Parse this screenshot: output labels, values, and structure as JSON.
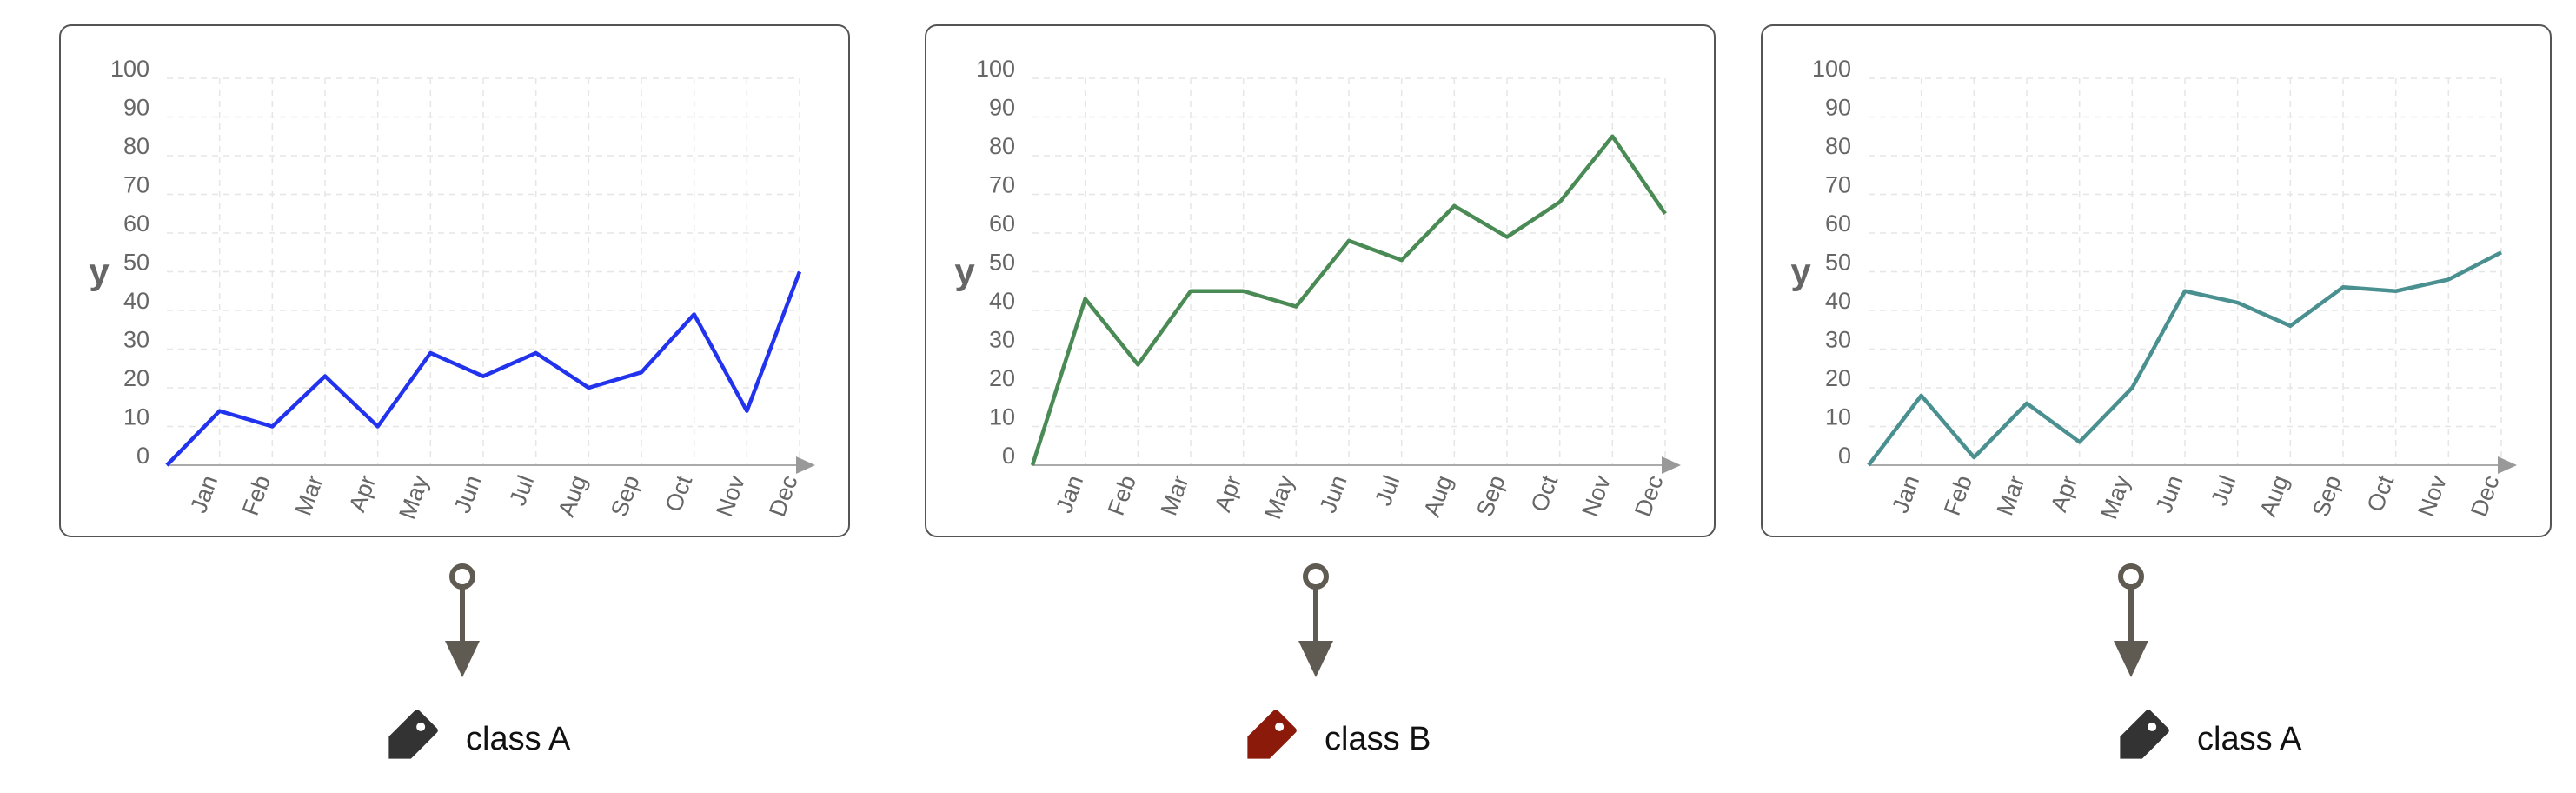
{
  "chart_data": [
    {
      "type": "line",
      "categories": [
        "Jan",
        "Feb",
        "Mar",
        "Apr",
        "May",
        "Jun",
        "Jul",
        "Aug",
        "Sep",
        "Oct",
        "Nov",
        "Dec"
      ],
      "x_start": 0,
      "values": [
        14,
        10,
        23,
        10,
        29,
        23,
        29,
        20,
        24,
        39,
        14,
        50
      ],
      "ylabel": "y",
      "ylim": [
        0,
        100
      ],
      "yticks": [
        0,
        10,
        20,
        30,
        40,
        50,
        60,
        70,
        80,
        90,
        100
      ],
      "color": "#2233ee",
      "grid": true
    },
    {
      "type": "line",
      "categories": [
        "Jan",
        "Feb",
        "Mar",
        "Apr",
        "May",
        "Jun",
        "Jul",
        "Aug",
        "Sep",
        "Oct",
        "Nov",
        "Dec"
      ],
      "x_start": 0,
      "values": [
        43,
        26,
        45,
        45,
        41,
        58,
        53,
        67,
        59,
        68,
        85,
        65
      ],
      "ylabel": "y",
      "ylim": [
        0,
        100
      ],
      "yticks": [
        0,
        10,
        20,
        30,
        40,
        50,
        60,
        70,
        80,
        90,
        100
      ],
      "color": "#4a8a55",
      "grid": true
    },
    {
      "type": "line",
      "categories": [
        "Jan",
        "Feb",
        "Mar",
        "Apr",
        "May",
        "Jun",
        "Jul",
        "Aug",
        "Sep",
        "Oct",
        "Nov",
        "Dec"
      ],
      "x_start": 0,
      "values": [
        18,
        2,
        16,
        6,
        20,
        45,
        42,
        36,
        46,
        45,
        48,
        55
      ],
      "ylabel": "y",
      "ylim": [
        0,
        100
      ],
      "yticks": [
        0,
        10,
        20,
        30,
        40,
        50,
        60,
        70,
        80,
        90,
        100
      ],
      "color": "#4a9090",
      "grid": true
    }
  ],
  "labels": [
    {
      "text": "class A",
      "tag_color": "#333333",
      "icon": "tag-icon"
    },
    {
      "text": "class B",
      "tag_color": "#8b1a0a",
      "icon": "tag-icon"
    },
    {
      "text": "class A",
      "tag_color": "#333333",
      "icon": "tag-icon"
    }
  ],
  "connector_color": "#5f5b52"
}
